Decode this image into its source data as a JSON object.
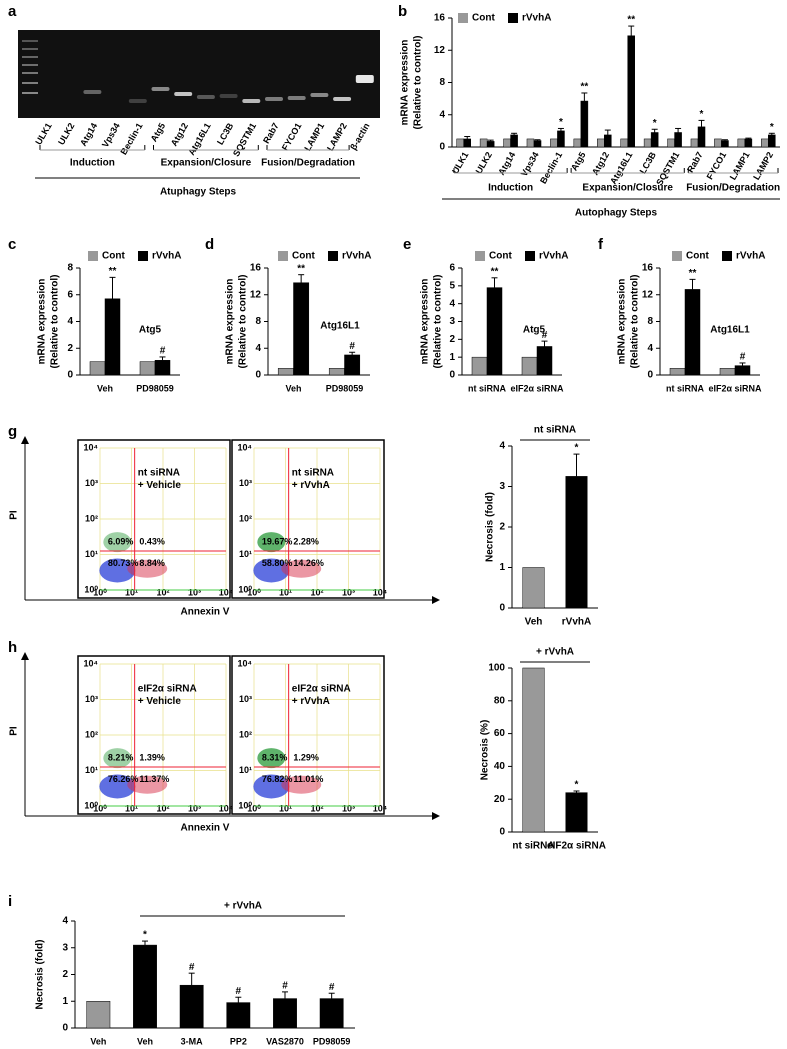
{
  "panel_labels": [
    "a",
    "b",
    "c",
    "d",
    "e",
    "f",
    "g",
    "h",
    "i"
  ],
  "gel": {
    "lanes": [
      "ULK1",
      "ULK2",
      "Atg14",
      "Vps34",
      "Beclin-1",
      "Atg5",
      "Atg12",
      "Atg16L1",
      "LC3B",
      "SQSTM1",
      "Rab7",
      "FYCO1",
      "LAMP1",
      "LAMP2",
      "β-actin"
    ],
    "groups": [
      "Induction",
      "Expansion/Closure",
      "Fusion/Degradation"
    ],
    "axis_title": "Atuphagy Steps"
  },
  "flow": {
    "x_title": "Annexin V",
    "y_title": "PI",
    "ticks": [
      "10⁰",
      "10¹",
      "10²",
      "10³",
      "10⁴"
    ],
    "panels": [
      {
        "plots": [
          {
            "label": [
              "nt siRNA",
              "+ Vehicle"
            ],
            "quadrants": [
              "6.09%",
              "0.43%",
              "80.73%",
              "8.84%"
            ]
          },
          {
            "label": [
              "nt siRNA",
              "+ rVvhA"
            ],
            "quadrants": [
              "19.67%",
              "2.28%",
              "58.80%",
              "14.26%"
            ]
          }
        ]
      },
      {
        "plots": [
          {
            "label": [
              "eIF2α siRNA",
              "+ Vehicle"
            ],
            "quadrants": [
              "8.21%",
              "1.39%",
              "76.26%",
              "11.37%"
            ]
          },
          {
            "label": [
              "eIF2α siRNA",
              "+ rVvhA"
            ],
            "quadrants": [
              "8.31%",
              "1.29%",
              "76.82%",
              "11.01%"
            ]
          }
        ]
      }
    ]
  },
  "chart_data": [
    {
      "type": "bar",
      "ylabel": [
        "mRNA expression",
        "(Relative to control)"
      ],
      "legend": "top",
      "categories": [
        "ULK1",
        "ULK2",
        "Atg14",
        "Vps34",
        "Beclin-1",
        "Atg5",
        "Atg12",
        "Atg16L1",
        "LC3B",
        "SQSTM1",
        "Rab7",
        "FYCO1",
        "LAMP1",
        "LAMP2"
      ],
      "series": [
        {
          "name": "Cont",
          "color": "#999999",
          "values": [
            1,
            1,
            1,
            1,
            1,
            1,
            1,
            1,
            1,
            1,
            1,
            1,
            1,
            1
          ]
        },
        {
          "name": "rVvhA",
          "color": "#000000",
          "values": [
            1.0,
            0.7,
            1.5,
            0.8,
            2.0,
            5.7,
            1.5,
            13.8,
            1.8,
            1.8,
            2.5,
            0.8,
            1.0,
            1.5
          ],
          "errors": [
            0.3,
            0.15,
            0.2,
            0.1,
            0.3,
            1.0,
            0.6,
            1.2,
            0.4,
            0.5,
            0.8,
            0.1,
            0.1,
            0.2
          ],
          "significance": [
            null,
            null,
            null,
            null,
            "*",
            "**",
            null,
            "**",
            "*",
            null,
            "*",
            null,
            null,
            "*"
          ]
        }
      ],
      "groups": [
        "Induction",
        "Expansion/Closure",
        "Fusion/Degradation"
      ],
      "axis_title": "Autophagy Steps",
      "ylim": [
        0,
        16
      ],
      "yticks": [
        0,
        4,
        8,
        12,
        16
      ]
    },
    {
      "type": "bar",
      "ylabel": [
        "mRNA expression",
        "(Relative to control)"
      ],
      "legend": "top",
      "annotation": "Atg5",
      "categories": [
        "Veh",
        "PD98059"
      ],
      "series": [
        {
          "name": "Cont",
          "color": "#999999",
          "values": [
            1,
            1
          ]
        },
        {
          "name": "rVvhA",
          "color": "#000000",
          "values": [
            5.7,
            1.1
          ],
          "errors": [
            1.6,
            0.25
          ],
          "significance": [
            "**",
            "#"
          ]
        }
      ],
      "ylim": [
        0,
        8
      ],
      "yticks": [
        0,
        2,
        4,
        6,
        8
      ]
    },
    {
      "type": "bar",
      "ylabel": [
        "mRNA expression",
        "(Relative to control)"
      ],
      "legend": "top",
      "annotation": "Atg16L1",
      "categories": [
        "Veh",
        "PD98059"
      ],
      "series": [
        {
          "name": "Cont",
          "color": "#999999",
          "values": [
            1,
            1
          ]
        },
        {
          "name": "rVvhA",
          "color": "#000000",
          "values": [
            13.8,
            3.0
          ],
          "errors": [
            1.2,
            0.4
          ],
          "significance": [
            "**",
            "#"
          ]
        }
      ],
      "ylim": [
        0,
        16
      ],
      "yticks": [
        0,
        4,
        8,
        12,
        16
      ]
    },
    {
      "type": "bar",
      "ylabel": [
        "mRNA expression",
        "(Relative to control)"
      ],
      "legend": "top",
      "annotation": "Atg5",
      "categories": [
        "nt siRNA",
        "eIF2α siRNA"
      ],
      "series": [
        {
          "name": "Cont",
          "color": "#999999",
          "values": [
            1,
            1
          ]
        },
        {
          "name": "rVvhA",
          "color": "#000000",
          "values": [
            4.9,
            1.6
          ],
          "errors": [
            0.55,
            0.3
          ],
          "significance": [
            "**",
            "#"
          ]
        }
      ],
      "ylim": [
        0,
        6
      ],
      "yticks": [
        0,
        1,
        2,
        3,
        4,
        5,
        6
      ]
    },
    {
      "type": "bar",
      "ylabel": [
        "mRNA expression",
        "(Relative to control)"
      ],
      "legend": "top",
      "annotation": "Atg16L1",
      "categories": [
        "nt siRNA",
        "eIF2α siRNA"
      ],
      "series": [
        {
          "name": "Cont",
          "color": "#999999",
          "values": [
            1,
            1
          ]
        },
        {
          "name": "rVvhA",
          "color": "#000000",
          "values": [
            12.8,
            1.4
          ],
          "errors": [
            1.5,
            0.4
          ],
          "significance": [
            "**",
            "#"
          ]
        }
      ],
      "ylim": [
        0,
        16
      ],
      "yticks": [
        0,
        4,
        8,
        12,
        16
      ]
    },
    {
      "type": "bar",
      "title": "nt siRNA",
      "ylabel": [
        "Necrosis (fold)"
      ],
      "categories": [
        "Veh",
        "rVvhA"
      ],
      "values": [
        1,
        3.25
      ],
      "errors": [
        0,
        0.55
      ],
      "colors": [
        "#999999",
        "#000000"
      ],
      "significance": [
        null,
        "*"
      ],
      "ylim": [
        0,
        4
      ],
      "yticks": [
        0,
        1,
        2,
        3,
        4
      ]
    },
    {
      "type": "bar",
      "title": "+ rVvhA",
      "ylabel": [
        "Necrosis (%)"
      ],
      "categories": [
        "nt siRNA",
        "eIF2α siRNA"
      ],
      "values": [
        100,
        24
      ],
      "errors": [
        0,
        1
      ],
      "colors": [
        "#999999",
        "#000000"
      ],
      "significance": [
        null,
        "*"
      ],
      "ylim": [
        0,
        100
      ],
      "yticks": [
        0,
        20,
        40,
        60,
        80,
        100
      ]
    },
    {
      "type": "bar",
      "title": "+ rVvhA",
      "ylabel": [
        "Necrosis (fold)"
      ],
      "categories": [
        "Veh",
        "Veh",
        "3-MA",
        "PP2",
        "VAS2870",
        "PD98059"
      ],
      "values": [
        1,
        3.1,
        1.6,
        0.95,
        1.1,
        1.1
      ],
      "errors": [
        0,
        0.15,
        0.45,
        0.2,
        0.25,
        0.2
      ],
      "colors": [
        "#999999",
        "#000000",
        "#000000",
        "#000000",
        "#000000",
        "#000000"
      ],
      "significance": [
        null,
        "*",
        "#",
        "#",
        "#",
        "#"
      ],
      "ylim": [
        0,
        4
      ],
      "yticks": [
        0,
        1,
        2,
        3,
        4
      ]
    }
  ]
}
